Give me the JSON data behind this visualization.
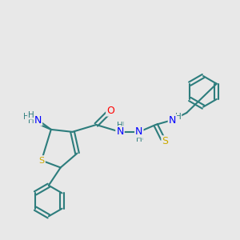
{
  "background_color": "#e8e8e8",
  "bond_color": "#2d7d7d",
  "atom_colors": {
    "N": "#0000ff",
    "O": "#ff0000",
    "S": "#ccaa00",
    "C": "#2d7d7d",
    "H": "#2d7d7d"
  },
  "figsize": [
    3.0,
    3.0
  ],
  "dpi": 100
}
